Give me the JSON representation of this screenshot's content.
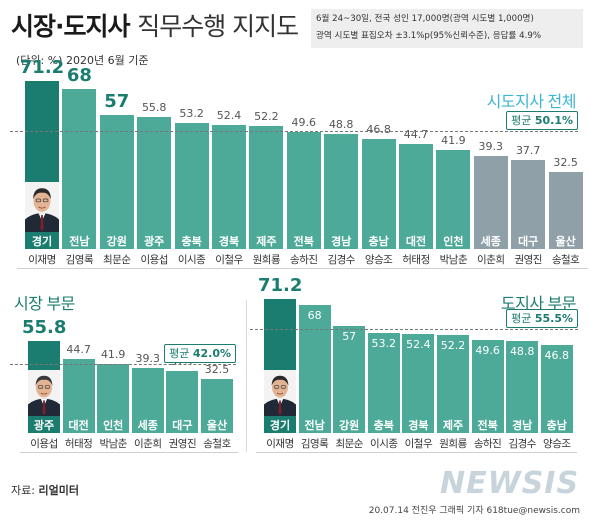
{
  "title": {
    "main": "시장·도지사",
    "sub": "직무수행 지지도"
  },
  "survey_note": {
    "line1": "6월 24~30일, 전국 성인 17,000명(광역 시도별 1,000명)",
    "line2": "광역 시도별 표집오차 ±3.1%p(95%신뢰수준), 응답률 4.9%"
  },
  "unit_note": "(단위: %) 2020년 6월 기준",
  "source": {
    "label": "자료:",
    "name": "리얼미터"
  },
  "credit": "20.07.14 전진우 그래픽 기자 618tue@newsis.com",
  "watermark": "NEWSIS",
  "avg_prefix": "평균",
  "colors": {
    "accent": "#1b7d6f",
    "teal": "#4eaa98",
    "gray": "#8fa0a8",
    "title_blue": "#3cb6d4"
  },
  "chart_data": [
    {
      "type": "bar",
      "title": "시도지사 전체",
      "title_parts": [
        "시도지사",
        "전체"
      ],
      "average": 50.1,
      "average_label": "50.1%",
      "categories": [
        "경기",
        "전남",
        "강원",
        "광주",
        "충북",
        "경북",
        "제주",
        "전북",
        "경남",
        "충남",
        "대전",
        "인천",
        "세종",
        "대구",
        "울산"
      ],
      "names": [
        "이재명",
        "김영록",
        "최문순",
        "이용섭",
        "이시종",
        "이철우",
        "원희룡",
        "송하진",
        "김경수",
        "양승조",
        "허태정",
        "박남춘",
        "이춘희",
        "권영진",
        "송철호"
      ],
      "values": [
        71.2,
        68,
        57,
        55.8,
        53.2,
        52.4,
        52.2,
        49.6,
        48.8,
        46.8,
        44.7,
        41.9,
        39.3,
        37.7,
        32.5
      ],
      "value_labels": [
        "71.2",
        "68",
        "57",
        "55.8",
        "53.2",
        "52.4",
        "52.2",
        "49.6",
        "48.8",
        "46.8",
        "44.7",
        "41.9",
        "39.3",
        "37.7",
        "32.5"
      ],
      "ylim": [
        0,
        80
      ]
    },
    {
      "type": "bar",
      "title": "시장 부문",
      "title_parts": [
        "시장",
        "부문"
      ],
      "average": 42.0,
      "average_label": "42.0%",
      "categories": [
        "광주",
        "대전",
        "인천",
        "세종",
        "대구",
        "울산"
      ],
      "names": [
        "이용섭",
        "허태정",
        "박남춘",
        "이춘희",
        "권영진",
        "송철호"
      ],
      "values": [
        55.8,
        44.7,
        41.9,
        39.3,
        37.7,
        32.5
      ],
      "value_labels": [
        "55.8",
        "44.7",
        "41.9",
        "39.3",
        "37.7",
        "32.5"
      ],
      "ylim": [
        0,
        80
      ]
    },
    {
      "type": "bar",
      "title": "도지사 부문",
      "title_parts": [
        "도지사",
        "부문"
      ],
      "average": 55.5,
      "average_label": "55.5%",
      "categories": [
        "경기",
        "전남",
        "강원",
        "충북",
        "경북",
        "제주",
        "전북",
        "경남",
        "충남"
      ],
      "names": [
        "이재명",
        "김영록",
        "최문순",
        "이시종",
        "이철우",
        "원희룡",
        "송하진",
        "김경수",
        "양승조"
      ],
      "values": [
        71.2,
        68,
        57,
        53.2,
        52.4,
        52.2,
        49.6,
        48.8,
        46.8
      ],
      "value_labels": [
        "71.2",
        "68",
        "57",
        "53.2",
        "52.4",
        "52.2",
        "49.6",
        "48.8",
        "46.8"
      ],
      "ylim": [
        0,
        80
      ]
    }
  ]
}
